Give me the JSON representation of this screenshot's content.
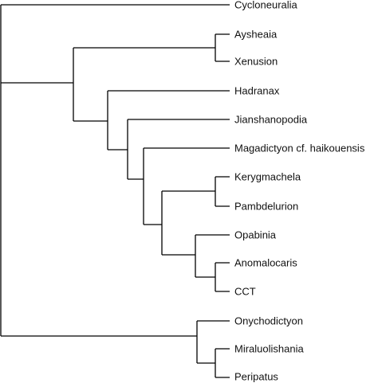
{
  "tree": {
    "leaves": [
      "Cycloneuralia",
      "Aysheaia",
      "Xenusion",
      "Hadranax",
      "Jianshanopodia",
      "Magadictyon cf. haikouensis",
      "Kerygmachela",
      "Pambdelurion",
      "Opabinia",
      "Anomalocaris",
      "CCT",
      "Onychodictyon",
      "Miraluolishania",
      "Peripatus"
    ]
  }
}
